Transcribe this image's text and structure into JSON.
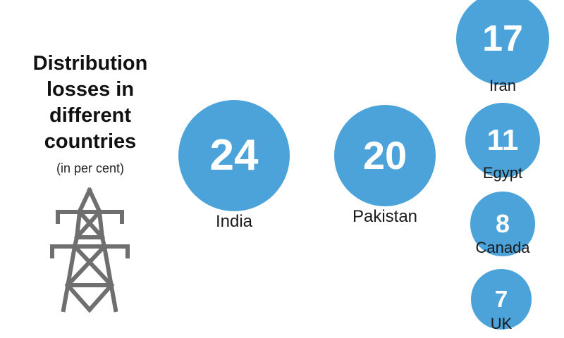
{
  "chart_data": {
    "type": "bubble",
    "title": "Distribution losses in different countries",
    "subtitle": "(in per cent)",
    "categories": [
      "India",
      "Pakistan",
      "Iran",
      "Egypt",
      "Canada",
      "UK"
    ],
    "values": [
      24,
      20,
      17,
      11,
      8,
      7
    ],
    "unit": "per cent",
    "bubble_color": "#4ba3da"
  },
  "header": {
    "title_lines": [
      "Distribution",
      "losses in",
      "different",
      "countries"
    ],
    "subtitle": "(in per cent)"
  },
  "icons": {
    "tower": "transmission-tower-icon"
  }
}
